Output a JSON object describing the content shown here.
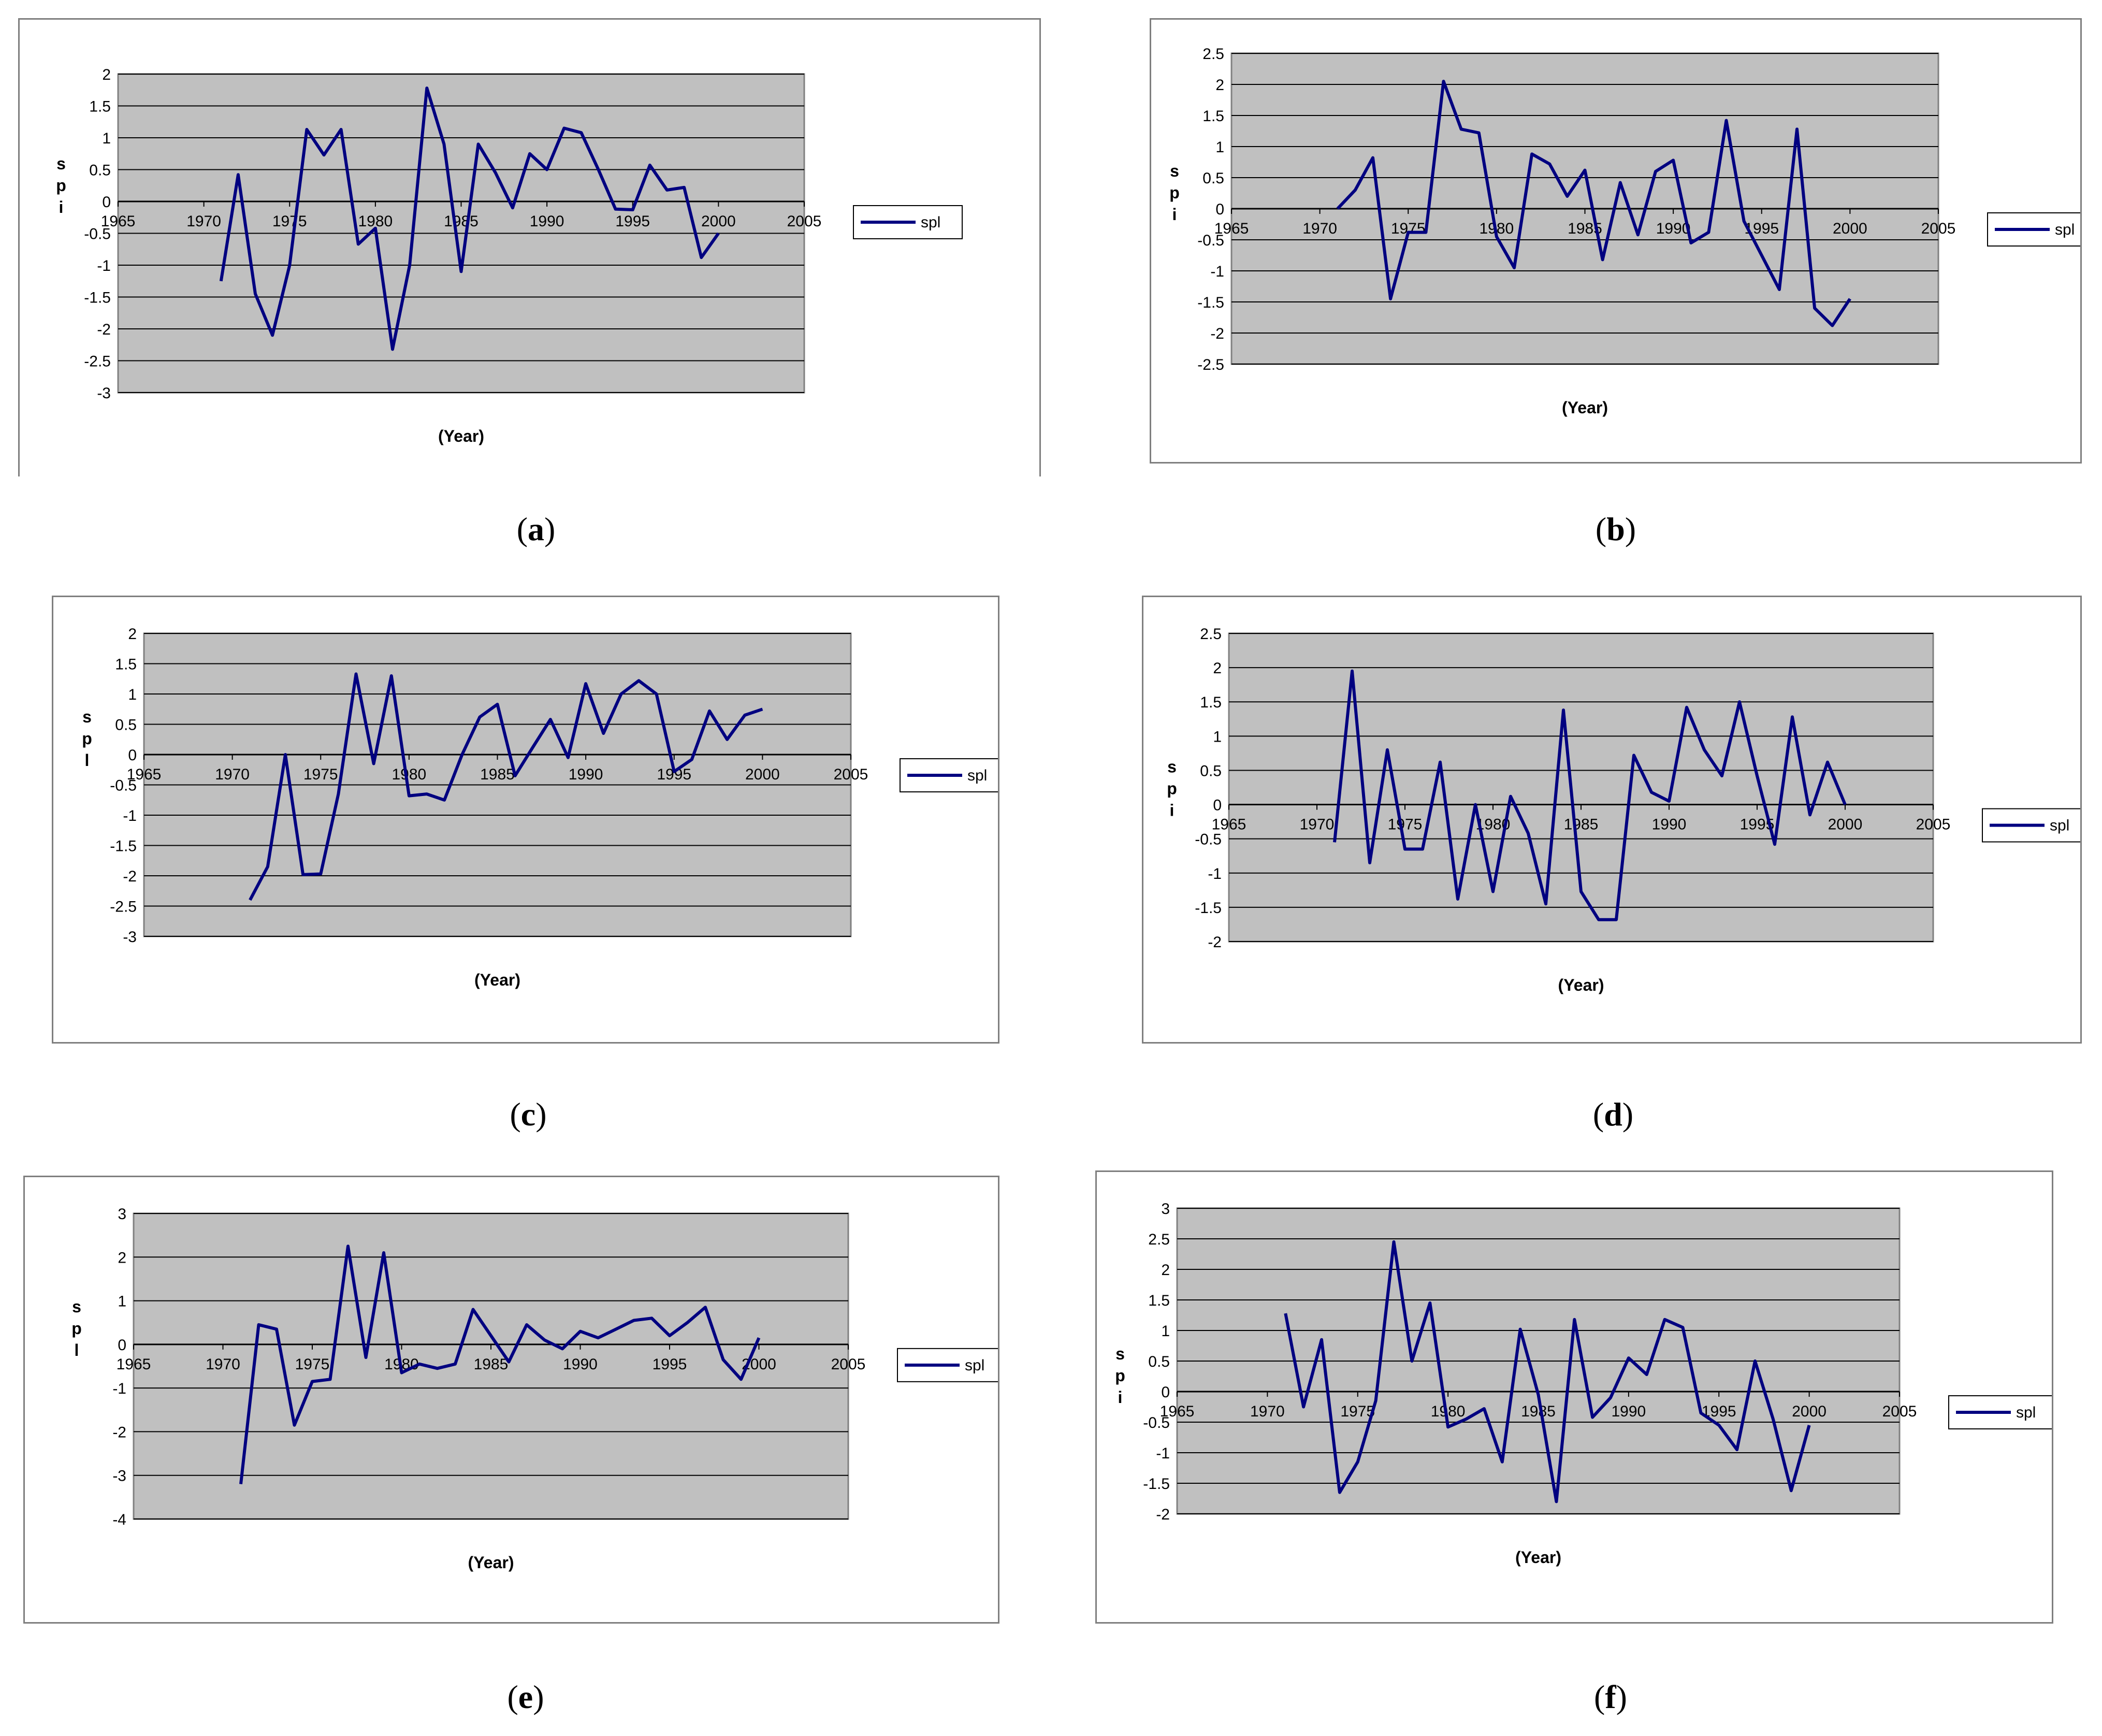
{
  "theme": {
    "plot_bg": "#c0c0c0",
    "line": "#000080",
    "grid": "#000000"
  },
  "chart_data": [
    {
      "panel": "a",
      "type": "line",
      "xlabel": "(Year)",
      "ylabel": "s p i",
      "xlim": [
        1965,
        2005
      ],
      "xticks": [
        "1965",
        "1970",
        "1975",
        "1980",
        "1985",
        "1990",
        "1995",
        "2000",
        "2005"
      ],
      "ylim": [
        -3,
        2
      ],
      "yticks": [
        "2",
        "1.5",
        "1",
        "0.5",
        "0",
        "-0.5",
        "-1",
        "-1.5",
        "-2",
        "-2.5",
        "-3"
      ],
      "legend": "spl",
      "series": [
        {
          "x": [
            1971,
            1972,
            1973,
            1974,
            1975,
            1976,
            1977,
            1978,
            1979,
            1980,
            1981,
            1982,
            1983,
            1984,
            1985,
            1986,
            1987,
            1988,
            1989,
            1990,
            1991,
            1992,
            1993,
            1994,
            1995,
            1996,
            1997,
            1998,
            1999,
            2000
          ],
          "y": [
            -1.25,
            0.42,
            -1.45,
            -2.1,
            -1.0,
            1.13,
            0.73,
            1.13,
            -0.67,
            -0.42,
            -2.32,
            -1.0,
            1.78,
            0.9,
            -1.1,
            0.9,
            0.45,
            -0.1,
            0.75,
            0.5,
            1.15,
            1.08,
            0.5,
            -0.12,
            -0.13,
            0.57,
            0.18,
            0.22,
            -0.88,
            -0.5
          ]
        }
      ]
    },
    {
      "panel": "b",
      "type": "line",
      "xlabel": "(Year)",
      "ylabel": "s p i",
      "xlim": [
        1965,
        2005
      ],
      "xticks": [
        "1965",
        "1970",
        "1975",
        "1980",
        "1985",
        "1990",
        "1995",
        "2000",
        "2005"
      ],
      "ylim": [
        -2.5,
        2.5
      ],
      "yticks": [
        "2.5",
        "2",
        "1.5",
        "1",
        "0.5",
        "0",
        "-0.5",
        "-1",
        "-1.5",
        "-2",
        "-2.5"
      ],
      "legend": "spl",
      "series": [
        {
          "x": [
            1971,
            1972,
            1973,
            1974,
            1975,
            1976,
            1977,
            1978,
            1979,
            1980,
            1981,
            1982,
            1983,
            1984,
            1985,
            1986,
            1987,
            1988,
            1989,
            1990,
            1991,
            1992,
            1993,
            1994,
            1995,
            1996,
            1997,
            1998,
            1999,
            2000
          ],
          "y": [
            0.0,
            0.3,
            0.82,
            -1.45,
            -0.38,
            -0.38,
            2.05,
            1.28,
            1.22,
            -0.45,
            -0.95,
            0.88,
            0.72,
            0.2,
            0.62,
            -0.82,
            0.42,
            -0.42,
            0.6,
            0.78,
            -0.55,
            -0.38,
            1.42,
            -0.2,
            -0.75,
            -1.3,
            1.28,
            -1.6,
            -1.88,
            -1.45
          ]
        }
      ]
    },
    {
      "panel": "c",
      "type": "line",
      "xlabel": "(Year)",
      "ylabel": "s p l",
      "xlim": [
        1965,
        2005
      ],
      "xticks": [
        "1965",
        "1970",
        "1975",
        "1980",
        "1985",
        "1990",
        "1995",
        "2000",
        "2005"
      ],
      "ylim": [
        -3,
        2
      ],
      "yticks": [
        "2",
        "1.5",
        "1",
        "0.5",
        "0",
        "-0.5",
        "-1",
        "-1.5",
        "-2",
        "-2.5",
        "-3"
      ],
      "legend": "spl",
      "series": [
        {
          "x": [
            1971,
            1972,
            1973,
            1974,
            1975,
            1976,
            1977,
            1978,
            1979,
            1980,
            1981,
            1982,
            1983,
            1984,
            1985,
            1986,
            1987,
            1988,
            1989,
            1990,
            1991,
            1992,
            1993,
            1994,
            1995,
            1996,
            1997,
            1998,
            1999,
            2000
          ],
          "y": [
            -2.4,
            -1.85,
            0.0,
            -1.98,
            -1.97,
            -0.65,
            1.33,
            -0.15,
            1.3,
            -0.68,
            -0.65,
            -0.75,
            0.0,
            0.62,
            0.83,
            -0.35,
            0.12,
            0.58,
            -0.05,
            1.17,
            0.35,
            1.0,
            1.22,
            1.0,
            -0.28,
            -0.08,
            0.72,
            0.25,
            0.65,
            0.75
          ]
        }
      ]
    },
    {
      "panel": "d",
      "type": "line",
      "xlabel": "(Year)",
      "ylabel": "s p i",
      "xlim": [
        1965,
        2005
      ],
      "xticks": [
        "1965",
        "1970",
        "1975",
        "1980",
        "1985",
        "1990",
        "1995",
        "2000",
        "2005"
      ],
      "ylim": [
        -2,
        2.5
      ],
      "yticks": [
        "2.5",
        "2",
        "1.5",
        "1",
        "0.5",
        "0",
        "-0.5",
        "-1",
        "-1.5",
        "-2"
      ],
      "legend": "spl",
      "series": [
        {
          "x": [
            1971,
            1972,
            1973,
            1974,
            1975,
            1976,
            1977,
            1978,
            1979,
            1980,
            1981,
            1982,
            1983,
            1984,
            1985,
            1986,
            1987,
            1988,
            1989,
            1990,
            1991,
            1992,
            1993,
            1994,
            1995,
            1996,
            1997,
            1998,
            1999,
            2000
          ],
          "y": [
            -0.55,
            1.95,
            -0.85,
            0.8,
            -0.65,
            -0.65,
            0.62,
            -1.38,
            0.0,
            -1.27,
            0.12,
            -0.42,
            -1.45,
            1.38,
            -1.27,
            -1.68,
            -1.68,
            0.72,
            0.18,
            0.05,
            1.42,
            0.8,
            0.42,
            1.5,
            0.42,
            -0.58,
            1.28,
            -0.15,
            0.62,
            0.0
          ]
        }
      ]
    },
    {
      "panel": "e",
      "type": "line",
      "xlabel": "(Year)",
      "ylabel": "s p l",
      "xlim": [
        1965,
        2005
      ],
      "xticks": [
        "1965",
        "1970",
        "1975",
        "1980",
        "1985",
        "1990",
        "1995",
        "2000",
        "2005"
      ],
      "ylim": [
        -4,
        3
      ],
      "yticks": [
        "3",
        "2",
        "1",
        "0",
        "-1",
        "-2",
        "-3",
        "-4"
      ],
      "legend": "spl",
      "series": [
        {
          "x": [
            1971,
            1972,
            1973,
            1974,
            1975,
            1976,
            1977,
            1978,
            1979,
            1980,
            1981,
            1982,
            1983,
            1984,
            1985,
            1986,
            1987,
            1988,
            1989,
            1990,
            1991,
            1992,
            1993,
            1994,
            1995,
            1996,
            1997,
            1998,
            1999,
            2000
          ],
          "y": [
            -3.2,
            0.45,
            0.35,
            -1.85,
            -0.85,
            -0.8,
            2.25,
            -0.3,
            2.1,
            -0.65,
            -0.45,
            -0.55,
            -0.45,
            0.8,
            0.2,
            -0.4,
            0.45,
            0.1,
            -0.1,
            0.3,
            0.15,
            0.35,
            0.55,
            0.6,
            0.2,
            0.5,
            0.85,
            -0.35,
            -0.8,
            0.15
          ]
        }
      ]
    },
    {
      "panel": "f",
      "type": "line",
      "xlabel": "(Year)",
      "ylabel": "s p i",
      "xlim": [
        1965,
        2005
      ],
      "xticks": [
        "1965",
        "1970",
        "1975",
        "1980",
        "1985",
        "1990",
        "1995",
        "2000",
        "2005"
      ],
      "ylim": [
        -2,
        3
      ],
      "yticks": [
        "3",
        "2.5",
        "2",
        "1.5",
        "1",
        "0.5",
        "0",
        "-0.5",
        "-1",
        "-1.5",
        "-2"
      ],
      "legend": "spl",
      "series": [
        {
          "x": [
            1971,
            1972,
            1973,
            1974,
            1975,
            1976,
            1977,
            1978,
            1979,
            1980,
            1981,
            1982,
            1983,
            1984,
            1985,
            1986,
            1987,
            1988,
            1989,
            1990,
            1991,
            1992,
            1993,
            1994,
            1995,
            1996,
            1997,
            1998,
            1999,
            2000
          ],
          "y": [
            1.28,
            -0.25,
            0.85,
            -1.65,
            -1.15,
            -0.15,
            2.45,
            0.5,
            1.45,
            -0.58,
            -0.45,
            -0.28,
            -1.15,
            1.02,
            -0.05,
            -1.8,
            1.18,
            -0.42,
            -0.1,
            0.55,
            0.28,
            1.18,
            1.05,
            -0.35,
            -0.55,
            -0.95,
            0.5,
            -0.45,
            -1.62,
            -0.55
          ]
        }
      ]
    }
  ],
  "panel_labels": [
    "(a)",
    "(b)",
    "(c)",
    "(d)",
    "(e)",
    "(f)"
  ]
}
